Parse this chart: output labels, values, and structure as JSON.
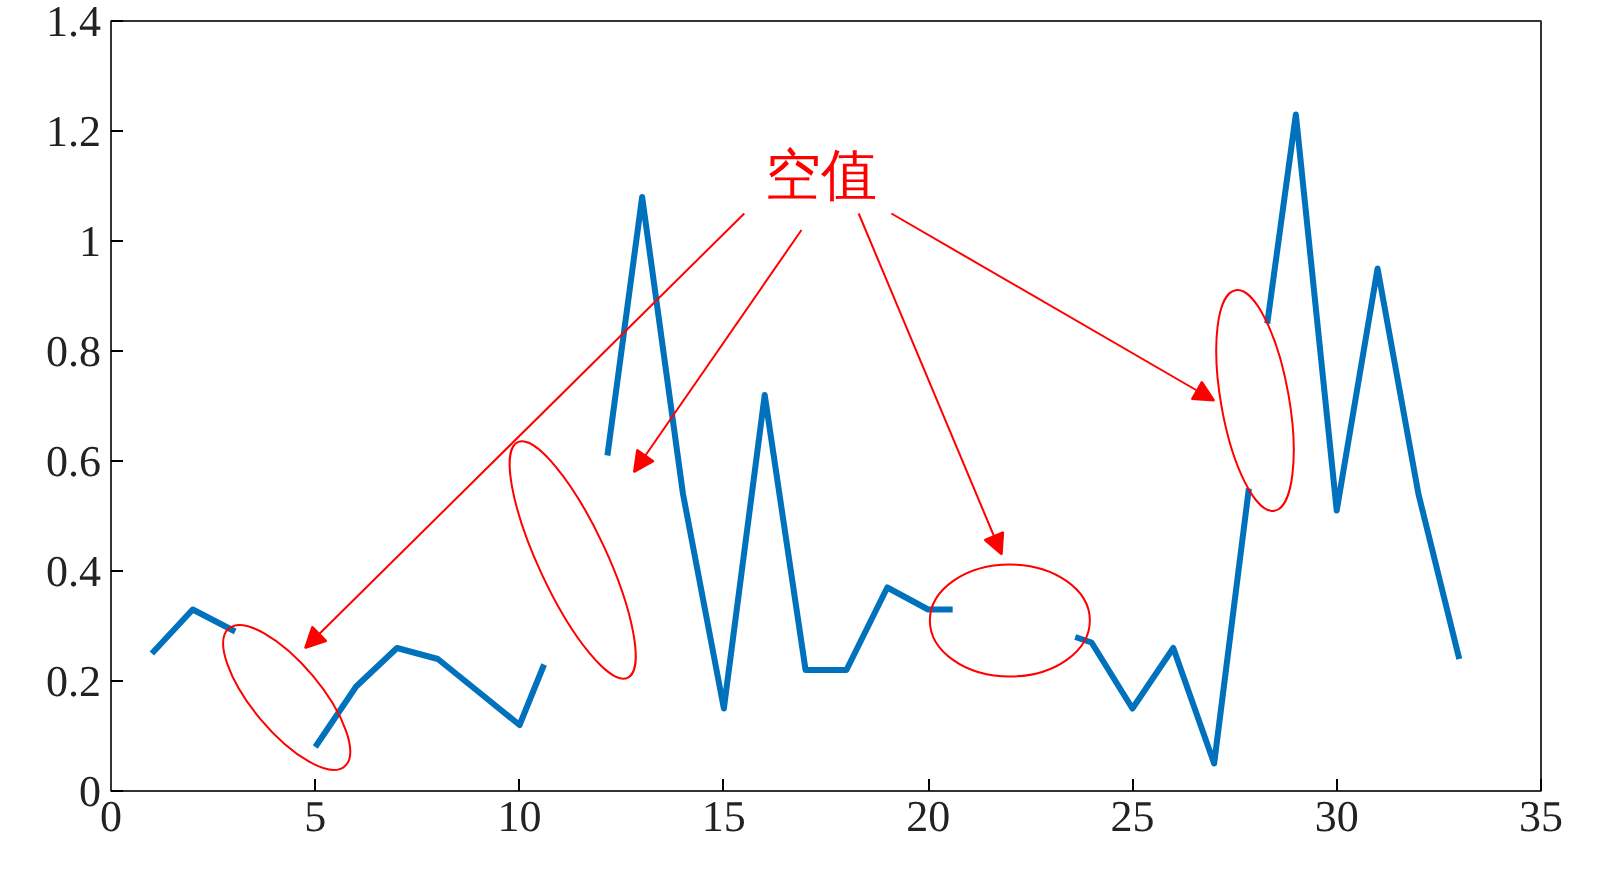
{
  "chart_data": {
    "type": "line",
    "annotations": [
      "空值"
    ],
    "x": [
      1,
      2,
      3.04,
      4,
      5,
      6,
      7,
      8,
      9,
      10,
      10.6,
      11,
      12.15,
      13,
      14,
      15,
      16,
      17,
      18,
      19,
      20,
      20.6,
      22,
      23.6,
      24,
      25,
      26,
      27,
      27.85,
      28,
      28.3,
      29,
      30,
      31,
      32,
      33
    ],
    "series": [
      {
        "color": "#0072bd",
        "values": [
          0.25,
          0.33,
          0.29,
          null,
          0.08,
          0.19,
          0.26,
          0.24,
          0.18,
          0.12,
          0.23,
          null,
          0.61,
          1.08,
          0.54,
          0.15,
          0.72,
          0.22,
          0.22,
          0.37,
          0.33,
          0.33,
          null,
          0.28,
          0.27,
          0.15,
          0.26,
          0.05,
          0.55,
          null,
          0.85,
          1.23,
          0.51,
          0.95,
          0.54,
          0.24
        ]
      }
    ],
    "xlim": [
      0,
      35
    ],
    "xticks": [
      0,
      5,
      10,
      15,
      20,
      25,
      30,
      35
    ],
    "ylim": [
      0,
      1.4
    ],
    "yticks": [
      0,
      0.2,
      0.4,
      0.6,
      0.8,
      1,
      1.2,
      1.4
    ],
    "grid": false,
    "line_style": "solid",
    "marker": "none"
  }
}
